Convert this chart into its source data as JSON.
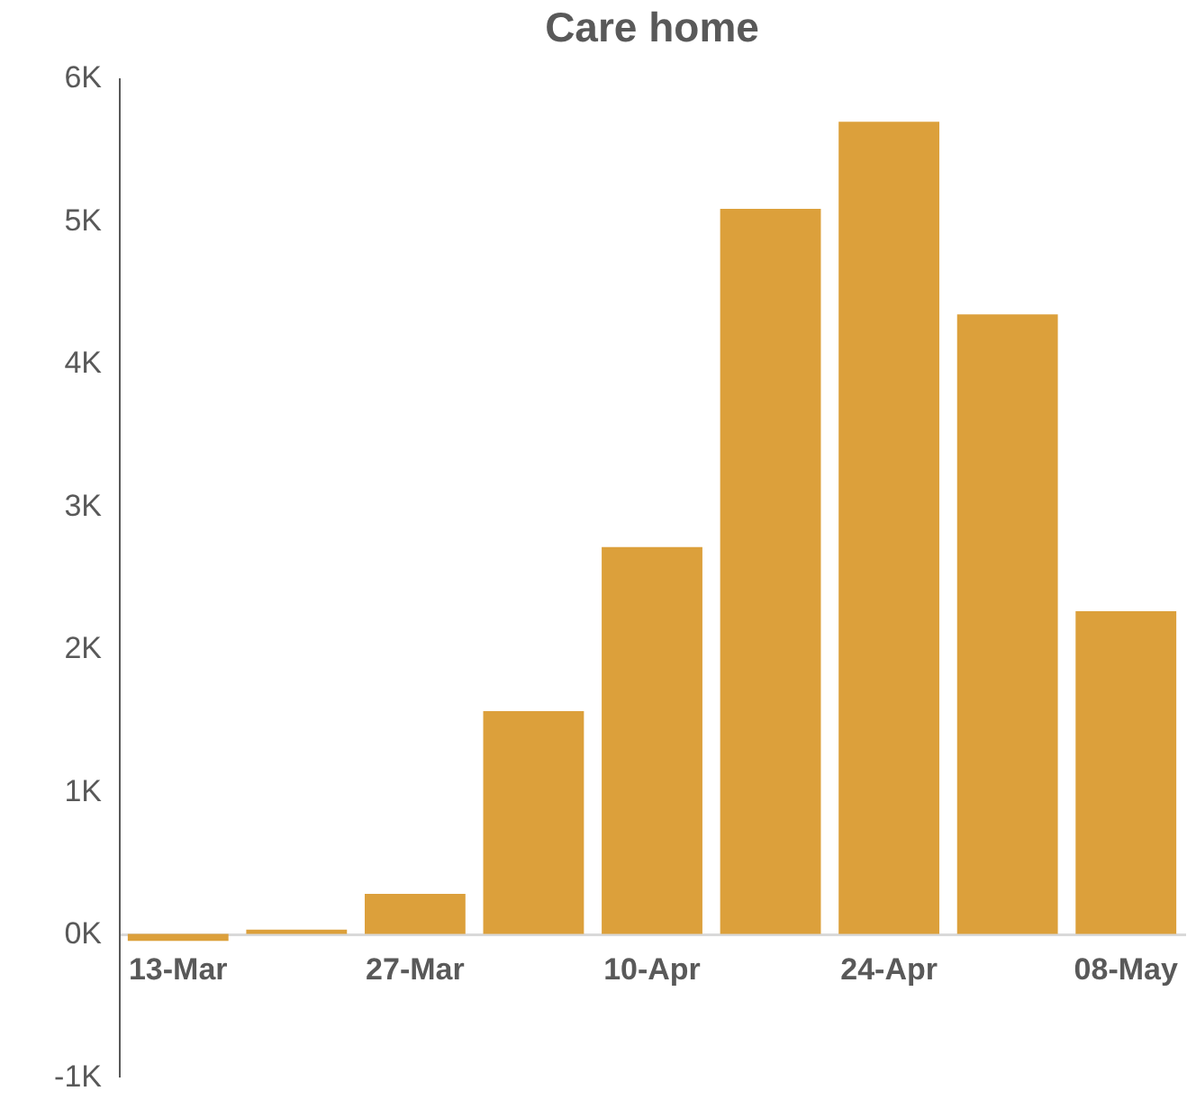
{
  "chart_data": {
    "type": "bar",
    "title": "Care home",
    "categories": [
      "13-Mar",
      null,
      "27-Mar",
      null,
      "10-Apr",
      null,
      "24-Apr",
      null,
      "08-May"
    ],
    "values": [
      -0.05,
      0.03,
      0.28,
      1.56,
      2.71,
      5.08,
      5.69,
      4.34,
      2.26
    ],
    "color": "#dca03b",
    "ylim": [
      -1,
      6
    ],
    "yticks": [
      {
        "value": -1,
        "label": "-1K"
      },
      {
        "value": 0,
        "label": "0K"
      },
      {
        "value": 1,
        "label": "1K"
      },
      {
        "value": 2,
        "label": "2K"
      },
      {
        "value": 3,
        "label": "3K"
      },
      {
        "value": 4,
        "label": "4K"
      },
      {
        "value": 5,
        "label": "5K"
      },
      {
        "value": 6,
        "label": "6K"
      }
    ],
    "grid": false
  }
}
